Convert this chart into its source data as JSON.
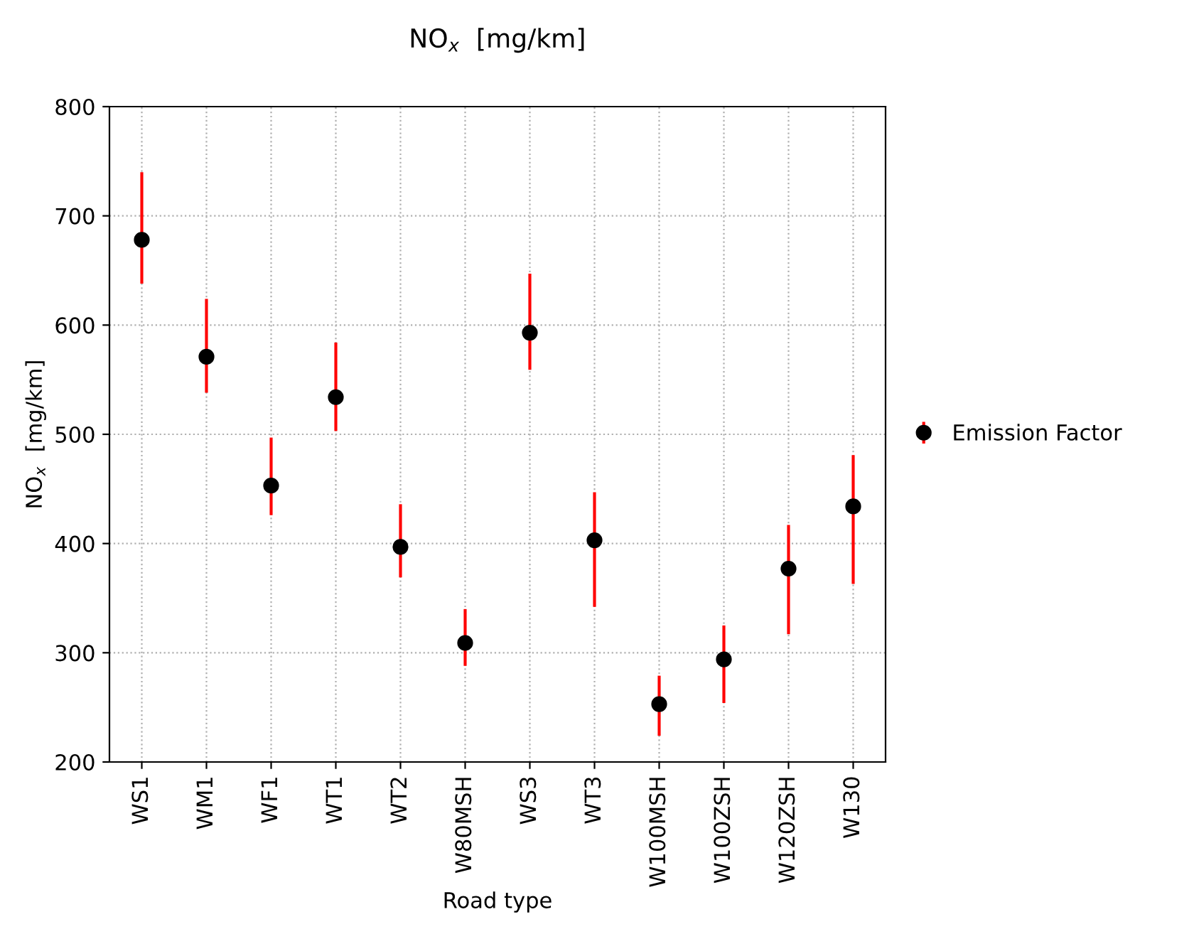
{
  "chart_data": {
    "type": "scatter",
    "title": "NO$_{x}$  [mg/km]",
    "xlabel": "Road type",
    "ylabel": "NO$_{x}$  [mg/km]",
    "categories": [
      "WS1",
      "WM1",
      "WF1",
      "WT1",
      "WT2",
      "W80MSH",
      "WS3",
      "WT3",
      "W100MSH",
      "W100ZSH",
      "W120ZSH",
      "W130"
    ],
    "series": [
      {
        "name": "Emission Factor",
        "color": "#000000",
        "values": [
          678,
          571,
          453,
          534,
          397,
          309,
          593,
          403,
          253,
          294,
          377,
          434
        ],
        "errors": [
          [
            638,
            740
          ],
          [
            538,
            624
          ],
          [
            426,
            497
          ],
          [
            503,
            584
          ],
          [
            369,
            436
          ],
          [
            288,
            340
          ],
          [
            559,
            647
          ],
          [
            342,
            447
          ],
          [
            224,
            279
          ],
          [
            254,
            325
          ],
          [
            317,
            417
          ],
          [
            363,
            481
          ]
        ]
      }
    ],
    "ylim": [
      200,
      800
    ],
    "yticks": [
      200,
      300,
      400,
      500,
      600,
      700,
      800
    ],
    "grid": true,
    "legend": "right",
    "marker": "circle"
  }
}
